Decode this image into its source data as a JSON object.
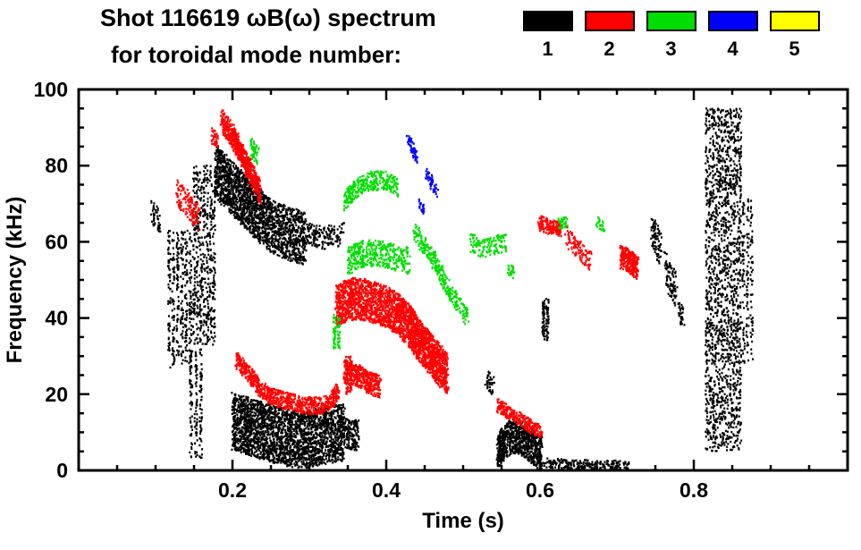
{
  "header": {
    "title": "Shot 116619 ωB(ω) spectrum",
    "subtitle": "for toroidal mode number:"
  },
  "legend": [
    {
      "label": "1",
      "color": "#000000"
    },
    {
      "label": "2",
      "color": "#ff0000"
    },
    {
      "label": "3",
      "color": "#00dd00"
    },
    {
      "label": "4",
      "color": "#0000ff"
    },
    {
      "label": "5",
      "color": "#ffff00"
    }
  ],
  "chart_data": {
    "type": "scatter",
    "title": "Shot 116619 ωB(ω) spectrum",
    "subtitle": "for toroidal mode number:",
    "xlabel": "Time (s)",
    "ylabel": "Frequency (kHz)",
    "xlim": [
      0,
      1.0
    ],
    "ylim": [
      0,
      100
    ],
    "xticks": [
      0.2,
      0.4,
      0.6,
      0.8
    ],
    "yticks": [
      0,
      20,
      40,
      60,
      80,
      100
    ],
    "xminor": 0.05,
    "yminor": 5,
    "grid": false,
    "legend_position": "top",
    "series": [
      {
        "name": "n=1",
        "label": "1",
        "color": "#000000",
        "features": [
          {
            "type": "band",
            "path": [
              [
                0.095,
                68
              ],
              [
                0.107,
                65
              ]
            ],
            "width": 6,
            "n": 45
          },
          {
            "type": "streaks",
            "t": [
              0.115,
              0.148
            ],
            "f": [
              27,
              63
            ],
            "count": 6,
            "n": 380
          },
          {
            "type": "streaks",
            "t": [
              0.148,
              0.178
            ],
            "f": [
              33,
              80
            ],
            "count": 7,
            "n": 520
          },
          {
            "type": "band",
            "path": [
              [
                0.178,
                79
              ],
              [
                0.19,
                76
              ],
              [
                0.21,
                72
              ],
              [
                0.23,
                68
              ],
              [
                0.25,
                64
              ],
              [
                0.275,
                62
              ],
              [
                0.295,
                61
              ]
            ],
            "width": 14,
            "n": 1900
          },
          {
            "type": "band",
            "path": [
              [
                0.295,
                62
              ],
              [
                0.32,
                61
              ],
              [
                0.345,
                62
              ]
            ],
            "width": 6,
            "n": 160
          },
          {
            "type": "streaks",
            "t": [
              0.143,
              0.162
            ],
            "f": [
              3,
              32
            ],
            "count": 3,
            "n": 160
          },
          {
            "type": "band",
            "path": [
              [
                0.2,
                13
              ],
              [
                0.23,
                11
              ],
              [
                0.26,
                9
              ],
              [
                0.29,
                8
              ],
              [
                0.32,
                9
              ],
              [
                0.345,
                10
              ]
            ],
            "width": 15,
            "n": 2500
          },
          {
            "type": "band",
            "path": [
              [
                0.345,
                10
              ],
              [
                0.365,
                9
              ]
            ],
            "width": 8,
            "n": 160
          },
          {
            "type": "band",
            "path": [
              [
                0.53,
                24
              ],
              [
                0.54,
                22
              ]
            ],
            "width": 5,
            "n": 40
          },
          {
            "type": "band",
            "path": [
              [
                0.545,
                5
              ],
              [
                0.555,
                8
              ],
              [
                0.565,
                9
              ],
              [
                0.578,
                8
              ],
              [
                0.59,
                6
              ],
              [
                0.602,
                4
              ]
            ],
            "width": 9,
            "n": 800
          },
          {
            "type": "band",
            "path": [
              [
                0.605,
                2
              ],
              [
                0.645,
                1.5
              ],
              [
                0.685,
                1.5
              ],
              [
                0.715,
                1
              ]
            ],
            "width": 2.5,
            "n": 240
          },
          {
            "type": "streaks",
            "t": [
              0.602,
              0.612
            ],
            "f": [
              34,
              45
            ],
            "count": 2,
            "n": 90
          },
          {
            "type": "band",
            "path": [
              [
                0.745,
                63
              ],
              [
                0.757,
                58
              ]
            ],
            "width": 9,
            "n": 90
          },
          {
            "type": "band",
            "path": [
              [
                0.763,
                53
              ],
              [
                0.777,
                47
              ]
            ],
            "width": 9,
            "n": 90
          },
          {
            "type": "band",
            "path": [
              [
                0.78,
                42
              ],
              [
                0.787,
                40
              ]
            ],
            "width": 5,
            "n": 35
          },
          {
            "type": "streaks",
            "t": [
              0.815,
              0.862
            ],
            "f": [
              5,
              95
            ],
            "count": 12,
            "n": 1700
          },
          {
            "type": "streaks",
            "t": [
              0.862,
              0.878
            ],
            "f": [
              28,
              72
            ],
            "count": 3,
            "n": 160
          }
        ]
      },
      {
        "name": "n=2",
        "label": "2",
        "color": "#ff0000",
        "features": [
          {
            "type": "band",
            "path": [
              [
                0.128,
                73
              ],
              [
                0.142,
                70
              ],
              [
                0.156,
                66
              ]
            ],
            "width": 7,
            "n": 140
          },
          {
            "type": "band",
            "path": [
              [
                0.173,
                88
              ],
              [
                0.181,
                86
              ]
            ],
            "width": 4,
            "n": 40
          },
          {
            "type": "band",
            "path": [
              [
                0.186,
                92
              ],
              [
                0.2,
                88
              ],
              [
                0.212,
                83
              ],
              [
                0.224,
                78
              ],
              [
                0.236,
                73
              ]
            ],
            "width": 6,
            "n": 650
          },
          {
            "type": "band",
            "path": [
              [
                0.205,
                29
              ],
              [
                0.222,
                25
              ],
              [
                0.238,
                21
              ],
              [
                0.255,
                19
              ],
              [
                0.275,
                18
              ],
              [
                0.295,
                17
              ],
              [
                0.315,
                17
              ],
              [
                0.328,
                18
              ],
              [
                0.338,
                21
              ]
            ],
            "width": 4.5,
            "n": 800
          },
          {
            "type": "band",
            "path": [
              [
                0.335,
                43
              ],
              [
                0.352,
                45
              ],
              [
                0.368,
                45
              ],
              [
                0.385,
                44
              ],
              [
                0.4,
                43
              ],
              [
                0.415,
                41
              ],
              [
                0.43,
                38
              ],
              [
                0.443,
                34
              ],
              [
                0.456,
                31
              ],
              [
                0.468,
                28
              ],
              [
                0.48,
                25
              ]
            ],
            "width": 11,
            "n": 2600
          },
          {
            "type": "band",
            "path": [
              [
                0.345,
                26
              ],
              [
                0.362,
                25
              ],
              [
                0.378,
                23
              ],
              [
                0.392,
                22
              ]
            ],
            "width": 6,
            "n": 420
          },
          {
            "type": "streaks",
            "t": [
              0.347,
              0.356
            ],
            "f": [
              20,
              30
            ],
            "count": 2,
            "n": 80
          },
          {
            "type": "band",
            "path": [
              [
                0.545,
                17
              ],
              [
                0.562,
                15
              ],
              [
                0.578,
                13
              ],
              [
                0.592,
                11
              ],
              [
                0.603,
                10
              ]
            ],
            "width": 3.5,
            "n": 280
          },
          {
            "type": "band",
            "path": [
              [
                0.598,
                65
              ],
              [
                0.612,
                64
              ],
              [
                0.627,
                63
              ]
            ],
            "width": 4,
            "n": 170
          },
          {
            "type": "band",
            "path": [
              [
                0.632,
                62
              ],
              [
                0.65,
                58
              ],
              [
                0.666,
                55
              ]
            ],
            "width": 5,
            "n": 110
          },
          {
            "type": "band",
            "path": [
              [
                0.705,
                56
              ],
              [
                0.716,
                55
              ],
              [
                0.727,
                53
              ]
            ],
            "width": 6,
            "n": 260
          }
        ]
      },
      {
        "name": "n=3",
        "label": "3",
        "color": "#00dd00",
        "features": [
          {
            "type": "band",
            "path": [
              [
                0.224,
                85
              ],
              [
                0.233,
                82
              ]
            ],
            "width": 5,
            "n": 55
          },
          {
            "type": "band",
            "path": [
              [
                0.345,
                70
              ],
              [
                0.36,
                74
              ],
              [
                0.38,
                76
              ],
              [
                0.4,
                76
              ],
              [
                0.416,
                74
              ]
            ],
            "width": 5,
            "n": 320
          },
          {
            "type": "band",
            "path": [
              [
                0.35,
                55
              ],
              [
                0.37,
                57
              ],
              [
                0.39,
                57
              ],
              [
                0.41,
                56
              ],
              [
                0.43,
                55
              ]
            ],
            "width": 7,
            "n": 400
          },
          {
            "type": "streaks",
            "t": [
              0.33,
              0.341
            ],
            "f": [
              32,
              41
            ],
            "count": 2,
            "n": 70
          },
          {
            "type": "band",
            "path": [
              [
                0.435,
                63
              ],
              [
                0.45,
                59
              ],
              [
                0.465,
                54
              ],
              [
                0.48,
                48
              ],
              [
                0.495,
                43
              ],
              [
                0.506,
                40
              ]
            ],
            "width": 5,
            "n": 300
          },
          {
            "type": "band",
            "path": [
              [
                0.51,
                60
              ],
              [
                0.525,
                58
              ],
              [
                0.54,
                59
              ],
              [
                0.556,
                60
              ]
            ],
            "width": 5,
            "n": 140
          },
          {
            "type": "band",
            "path": [
              [
                0.558,
                53
              ],
              [
                0.566,
                52
              ]
            ],
            "width": 3,
            "n": 25
          },
          {
            "type": "band",
            "path": [
              [
                0.624,
                65
              ],
              [
                0.636,
                65
              ]
            ],
            "width": 3,
            "n": 40
          },
          {
            "type": "band",
            "path": [
              [
                0.674,
                65
              ],
              [
                0.683,
                64
              ]
            ],
            "width": 3,
            "n": 30
          }
        ]
      },
      {
        "name": "n=4",
        "label": "4",
        "color": "#0000ff",
        "features": [
          {
            "type": "band",
            "path": [
              [
                0.428,
                87
              ],
              [
                0.44,
                82
              ]
            ],
            "width": 3,
            "n": 60
          },
          {
            "type": "band",
            "path": [
              [
                0.452,
                78
              ],
              [
                0.466,
                73
              ]
            ],
            "width": 3,
            "n": 50
          },
          {
            "type": "band",
            "path": [
              [
                0.443,
                70
              ],
              [
                0.45,
                68
              ]
            ],
            "width": 2.5,
            "n": 25
          }
        ]
      },
      {
        "name": "n=5",
        "label": "5",
        "color": "#ffff00",
        "features": []
      }
    ]
  }
}
